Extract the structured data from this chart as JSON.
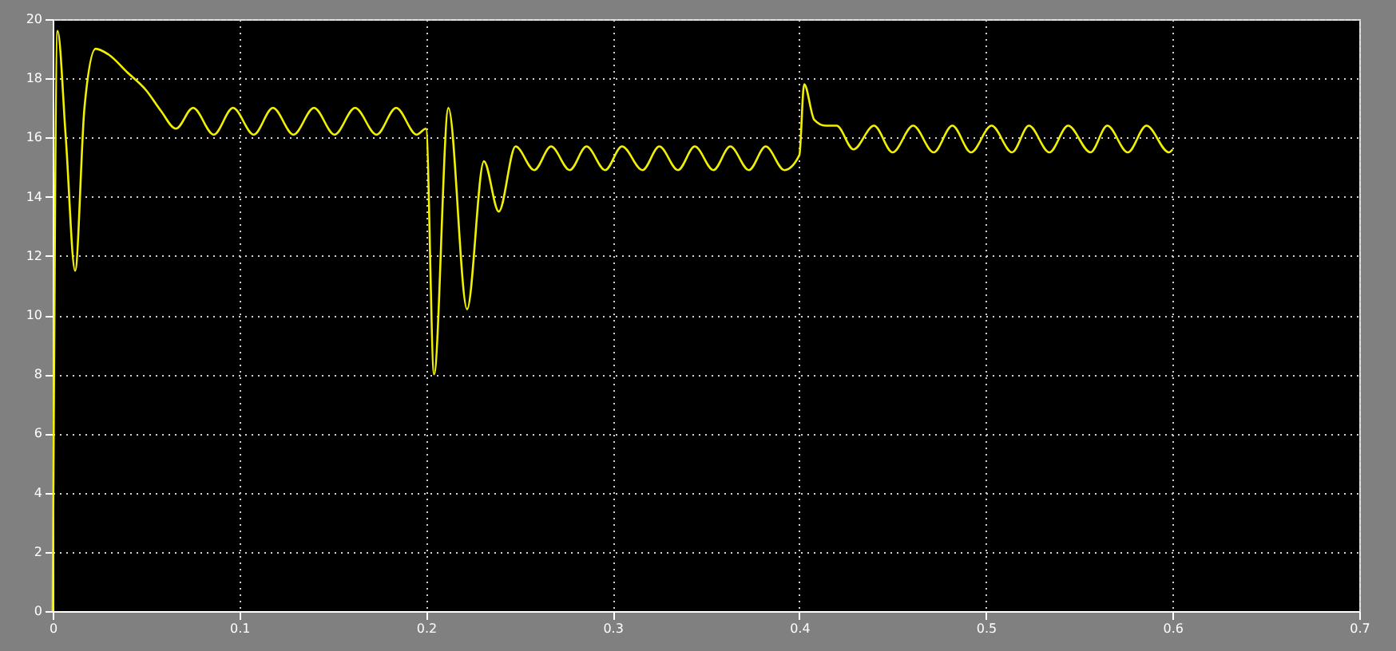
{
  "chart_data": {
    "type": "line",
    "x": [
      0,
      0.0026,
      0.007,
      0.012,
      0.017,
      0.023,
      0.03,
      0.04,
      0.05,
      0.058,
      0.066,
      0.0752,
      0.0863,
      0.0966,
      0.1077,
      0.118,
      0.129,
      0.14,
      0.151,
      0.162,
      0.1735,
      0.184,
      0.195,
      0.2,
      0.2043,
      0.212,
      0.222,
      0.231,
      0.239,
      0.248,
      0.258,
      0.267,
      0.277,
      0.286,
      0.296,
      0.305,
      0.316,
      0.325,
      0.335,
      0.344,
      0.354,
      0.363,
      0.373,
      0.382,
      0.392,
      0.4,
      0.4026,
      0.408,
      0.414,
      0.42,
      0.429,
      0.44,
      0.45,
      0.461,
      0.472,
      0.482,
      0.492,
      0.503,
      0.514,
      0.523,
      0.534,
      0.544,
      0.556,
      0.565,
      0.576,
      0.586,
      0.598,
      0.6
    ],
    "series": [
      {
        "color": "#f0f000",
        "values": [
          0,
          19.6,
          16,
          11.5,
          17,
          19,
          18.8,
          18.2,
          17.6,
          16.9,
          16.3,
          17.0,
          16.1,
          17.0,
          16.1,
          17.0,
          16.1,
          17.0,
          16.1,
          17.0,
          16.1,
          17.0,
          16.1,
          16.3,
          8,
          17.0,
          10.2,
          15.2,
          13.5,
          15.7,
          14.9,
          15.7,
          14.9,
          15.7,
          14.9,
          15.7,
          14.9,
          15.7,
          14.9,
          15.7,
          14.9,
          15.7,
          14.9,
          15.7,
          14.9,
          15.4,
          17.8,
          16.6,
          16.4,
          16.4,
          15.6,
          16.4,
          15.5,
          16.4,
          15.5,
          16.4,
          15.5,
          16.4,
          15.5,
          16.4,
          15.5,
          16.4,
          15.5,
          16.4,
          15.5,
          16.4,
          15.5,
          15.6
        ]
      }
    ],
    "xlim": [
      0,
      0.7
    ],
    "ylim": [
      0,
      20
    ],
    "xticks": [
      0,
      0.1,
      0.2,
      0.3,
      0.4,
      0.5,
      0.6,
      0.7
    ],
    "yticks": [
      0,
      2,
      4,
      6,
      8,
      10,
      12,
      14,
      16,
      18,
      20
    ],
    "grid": true
  }
}
